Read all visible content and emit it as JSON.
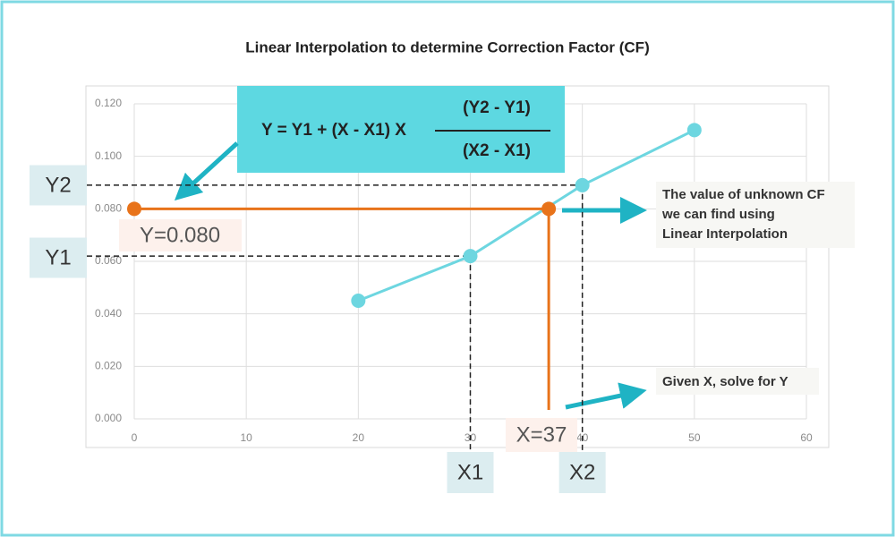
{
  "chart_data": {
    "type": "line",
    "title": "Linear Interpolation to determine Correction Factor (CF)",
    "series": [
      {
        "color": "#6dd6e0",
        "x": [
          20,
          30,
          40,
          50
        ],
        "values": [
          0.045,
          0.062,
          0.089,
          0.11
        ]
      }
    ],
    "highlight": {
      "x": 37,
      "y": 0.08,
      "x_label": "X=37",
      "y_label": "Y=0.080",
      "color": "#e8731a"
    },
    "x_guides": [
      "X1",
      "X2"
    ],
    "y_guides": [
      "Y1",
      "Y2"
    ],
    "formula": {
      "lhs": "Y = Y1 + (X - X1) X",
      "numerator": "(Y2 - Y1)",
      "denominator": "(X2 - X1)"
    },
    "callouts": [
      [
        "The value of unknown CF",
        " we can find using",
        "Linear Interpolation"
      ],
      [
        "Given X, solve for Y"
      ]
    ],
    "xlim": [
      0,
      60
    ],
    "ylim": [
      0,
      0.12
    ],
    "xticks": [
      0,
      10,
      20,
      30,
      40,
      50,
      60
    ],
    "yticks": [
      {
        "value": 0,
        "label": "0.000"
      },
      {
        "value": 0.02,
        "label": "0.020"
      },
      {
        "value": 0.04,
        "label": "0.040"
      },
      {
        "value": 0.06,
        "label": "0.060"
      },
      {
        "value": 0.08,
        "label": "0.080"
      },
      {
        "value": 0.1,
        "label": "0.100"
      },
      {
        "value": 0.12,
        "label": "0.120"
      }
    ],
    "grid": true
  }
}
